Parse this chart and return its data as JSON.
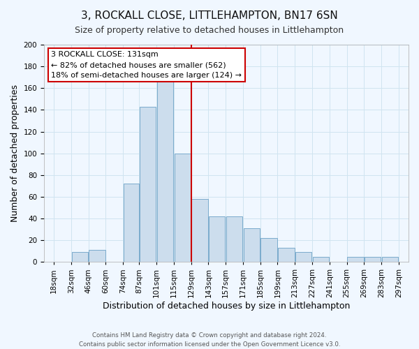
{
  "title": "3, ROCKALL CLOSE, LITTLEHAMPTON, BN17 6SN",
  "subtitle": "Size of property relative to detached houses in Littlehampton",
  "xlabel": "Distribution of detached houses by size in Littlehampton",
  "ylabel": "Number of detached properties",
  "bin_labels": [
    "18sqm",
    "32sqm",
    "46sqm",
    "60sqm",
    "74sqm",
    "87sqm",
    "101sqm",
    "115sqm",
    "129sqm",
    "143sqm",
    "157sqm",
    "171sqm",
    "185sqm",
    "199sqm",
    "213sqm",
    "227sqm",
    "241sqm",
    "255sqm",
    "269sqm",
    "283sqm",
    "297sqm"
  ],
  "bin_edges": [
    18,
    32,
    46,
    60,
    74,
    87,
    101,
    115,
    129,
    143,
    157,
    171,
    185,
    199,
    213,
    227,
    241,
    255,
    269,
    283,
    297
  ],
  "heights": [
    0,
    9,
    11,
    0,
    72,
    143,
    168,
    100,
    58,
    42,
    42,
    31,
    22,
    13,
    9,
    5,
    0,
    5,
    5,
    5
  ],
  "bar_color": "#ccdded",
  "bar_edge_color": "#7aabcc",
  "grid_color": "#d0e4f0",
  "background_color": "#f0f7ff",
  "vline_x": 129,
  "vline_color": "#cc0000",
  "ylim": [
    0,
    200
  ],
  "yticks": [
    0,
    20,
    40,
    60,
    80,
    100,
    120,
    140,
    160,
    180,
    200
  ],
  "annotation_title": "3 ROCKALL CLOSE: 131sqm",
  "annotation_line1": "← 82% of detached houses are smaller (562)",
  "annotation_line2": "18% of semi-detached houses are larger (124) →",
  "annotation_box_color": "#ffffff",
  "annotation_box_edge": "#cc0000",
  "footer1": "Contains HM Land Registry data © Crown copyright and database right 2024.",
  "footer2": "Contains public sector information licensed under the Open Government Licence v3.0.",
  "title_fontsize": 11,
  "subtitle_fontsize": 9,
  "xlabel_fontsize": 9,
  "ylabel_fontsize": 9,
  "tick_fontsize": 7.5
}
